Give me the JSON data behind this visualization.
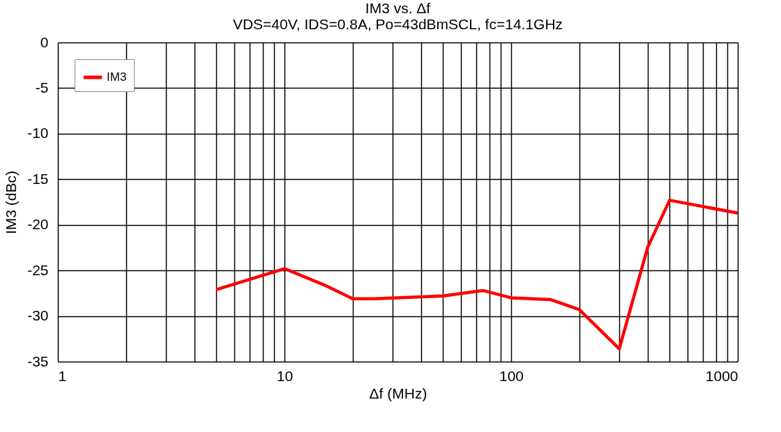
{
  "chart_data": {
    "type": "line",
    "title": "IM3  vs. Δf",
    "subtitle": "VDS=40V, IDS=0.8A,  Po=43dBmSCL, fc=14.1GHz",
    "xlabel": "Δf (MHz)",
    "ylabel": "IM3  (dBc)",
    "log": "x",
    "xlim": [
      1,
      1000
    ],
    "xticks": [
      1,
      {
        "value": 2,
        "label": null
      },
      {
        "value": 3,
        "label": null
      },
      {
        "value": 4,
        "label": null
      },
      {
        "value": 5,
        "label": null
      },
      {
        "value": 6,
        "label": null
      },
      {
        "value": 7,
        "label": null
      },
      {
        "value": 8,
        "label": null
      },
      {
        "value": 9,
        "label": null
      },
      10,
      {
        "value": 20,
        "label": null
      },
      {
        "value": 30,
        "label": null
      },
      {
        "value": 40,
        "label": null
      },
      {
        "value": 50,
        "label": null
      },
      {
        "value": 60,
        "label": null
      },
      {
        "value": 70,
        "label": null
      },
      {
        "value": 80,
        "label": null
      },
      {
        "value": 90,
        "label": null
      },
      100,
      {
        "value": 200,
        "label": null
      },
      {
        "value": 300,
        "label": null
      },
      {
        "value": 400,
        "label": null
      },
      {
        "value": 500,
        "label": null
      },
      {
        "value": 600,
        "label": null
      },
      {
        "value": 700,
        "label": null
      },
      {
        "value": 800,
        "label": null
      },
      {
        "value": 900,
        "label": null
      },
      1000
    ],
    "ylim": [
      -35,
      0
    ],
    "yticks": [
      -35,
      -30,
      -25,
      -20,
      -15,
      -10,
      -5,
      0
    ],
    "grid": true,
    "legend": "top left",
    "marker": "none",
    "line_style": "solid",
    "x": [
      5,
      10,
      15,
      20,
      25,
      50,
      75,
      100,
      150,
      200,
      300,
      400,
      500,
      1000
    ],
    "series": [
      {
        "name": "IM3",
        "color": "#ff0000",
        "values": [
          -27.1,
          -24.8,
          -26.6,
          -28.1,
          -28.1,
          -27.8,
          -27.2,
          -28.0,
          -28.2,
          -29.3,
          -33.6,
          -22.5,
          -17.3,
          -18.7
        ]
      }
    ]
  }
}
